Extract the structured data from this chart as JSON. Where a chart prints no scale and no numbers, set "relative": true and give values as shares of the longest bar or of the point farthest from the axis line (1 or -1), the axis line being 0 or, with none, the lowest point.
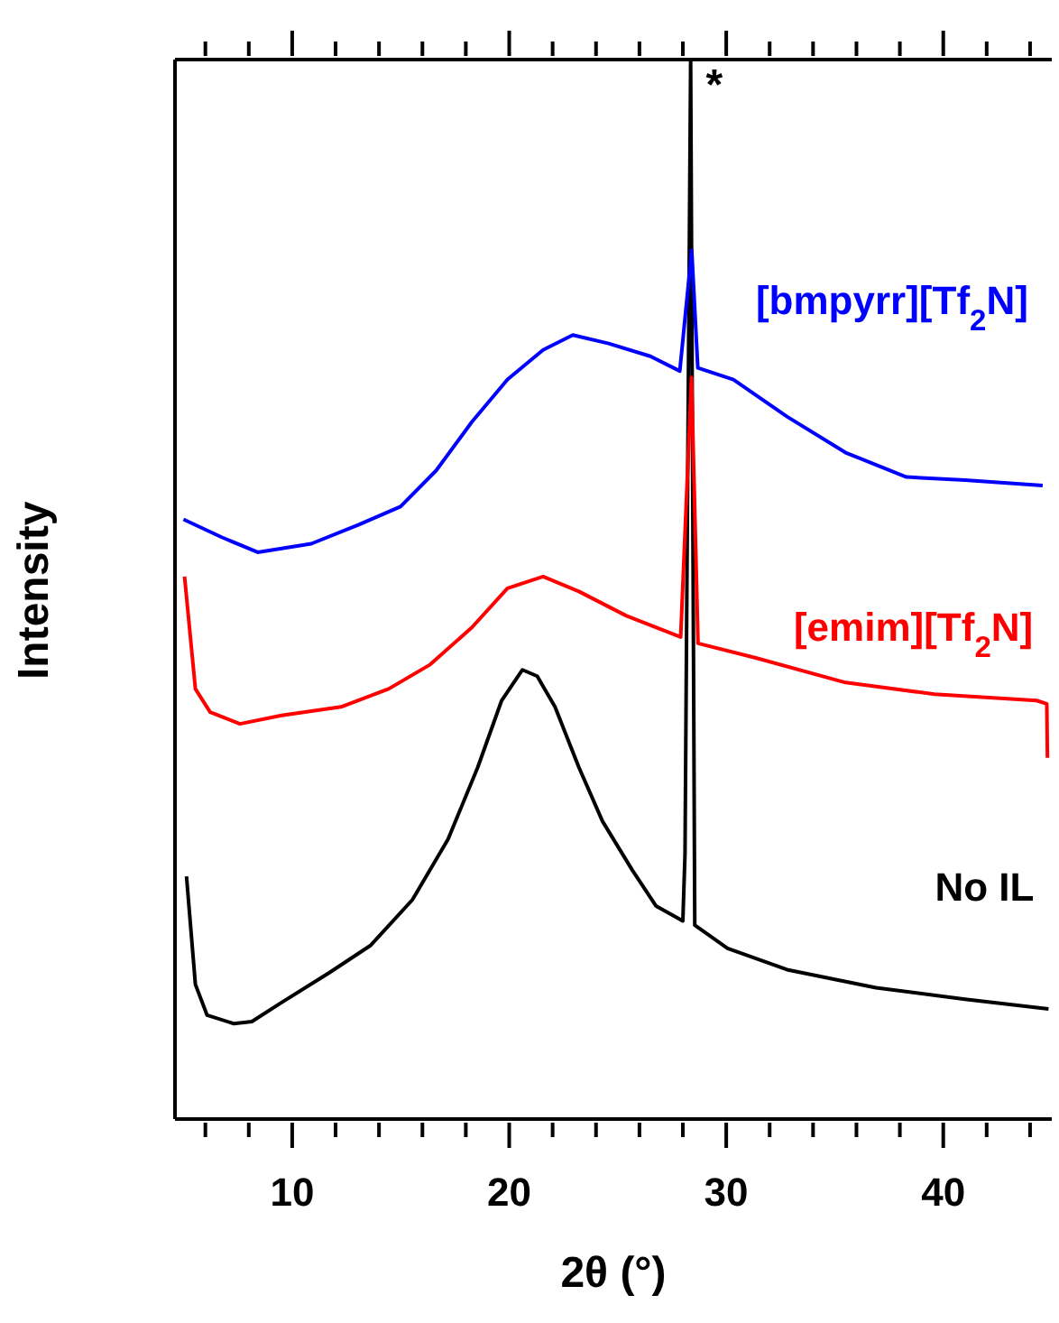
{
  "chart_data": {
    "type": "line",
    "xlabel": "2θ (°)",
    "ylabel": "Intensity",
    "relative": true,
    "xlim": [
      4.6,
      45
    ],
    "xticks": [
      {
        "value": 6,
        "label": null
      },
      {
        "value": 8,
        "label": null
      },
      10,
      {
        "value": 12,
        "label": null
      },
      {
        "value": 14,
        "label": null
      },
      {
        "value": 16,
        "label": null
      },
      {
        "value": 18,
        "label": null
      },
      20,
      {
        "value": 22,
        "label": null
      },
      {
        "value": 24,
        "label": null
      },
      {
        "value": 26,
        "label": null
      },
      {
        "value": 28,
        "label": null
      },
      30,
      {
        "value": 32,
        "label": null
      },
      {
        "value": 34,
        "label": null
      },
      {
        "value": 36,
        "label": null
      },
      {
        "value": 38,
        "label": null
      },
      40,
      {
        "value": 42,
        "label": null
      },
      {
        "value": 44,
        "label": null
      }
    ],
    "tick_labels": "x",
    "marker": "none",
    "line_style": "solid",
    "annotations": [
      {
        "text": "*",
        "x": 28.4,
        "y": 1.0
      }
    ],
    "series": [
      {
        "name": "No IL",
        "color": "#000000",
        "x": [
          5.13,
          5.54,
          6.08,
          7.32,
          8.14,
          9.51,
          11.7,
          13.62,
          15.54,
          17.18,
          18.55,
          19.65,
          20.61,
          21.29,
          22.11,
          23.21,
          24.3,
          25.67,
          26.77,
          28.0,
          28.1,
          28.36,
          28.55,
          30.06,
          32.8,
          36.9,
          41.0,
          44.85
        ],
        "values": [
          0.229,
          0.127,
          0.098,
          0.09,
          0.092,
          0.11,
          0.138,
          0.164,
          0.207,
          0.264,
          0.332,
          0.395,
          0.424,
          0.418,
          0.389,
          0.332,
          0.281,
          0.235,
          0.201,
          0.187,
          0.25,
          1.0,
          0.183,
          0.161,
          0.141,
          0.124,
          0.113,
          0.104
        ]
      },
      {
        "name": "[emim][Tf$_{2}$N]",
        "color": "#ff0000",
        "x": [
          5.04,
          5.54,
          6.22,
          7.59,
          9.51,
          12.25,
          14.44,
          16.36,
          18.28,
          19.92,
          21.56,
          23.21,
          25.4,
          27.9,
          28.4,
          28.7,
          31.4,
          35.5,
          39.6,
          44.3,
          44.77,
          44.8
        ],
        "values": [
          0.512,
          0.406,
          0.384,
          0.373,
          0.381,
          0.389,
          0.406,
          0.429,
          0.464,
          0.501,
          0.512,
          0.498,
          0.475,
          0.455,
          0.7,
          0.449,
          0.435,
          0.412,
          0.401,
          0.395,
          0.392,
          0.341
        ]
      },
      {
        "name": "[bmpyrr][Tf$_{2}$N]",
        "color": "#0000ff",
        "x": [
          4.99,
          6.77,
          8.41,
          10.88,
          13.07,
          14.99,
          16.63,
          18.28,
          19.92,
          21.56,
          22.93,
          24.58,
          26.5,
          27.86,
          28.41,
          28.69,
          30.33,
          32.8,
          35.5,
          38.3,
          41.0,
          44.58
        ],
        "values": [
          0.566,
          0.549,
          0.535,
          0.543,
          0.561,
          0.578,
          0.612,
          0.658,
          0.698,
          0.726,
          0.74,
          0.732,
          0.72,
          0.706,
          0.82,
          0.709,
          0.698,
          0.663,
          0.629,
          0.606,
          0.603,
          0.598
        ]
      }
    ]
  }
}
